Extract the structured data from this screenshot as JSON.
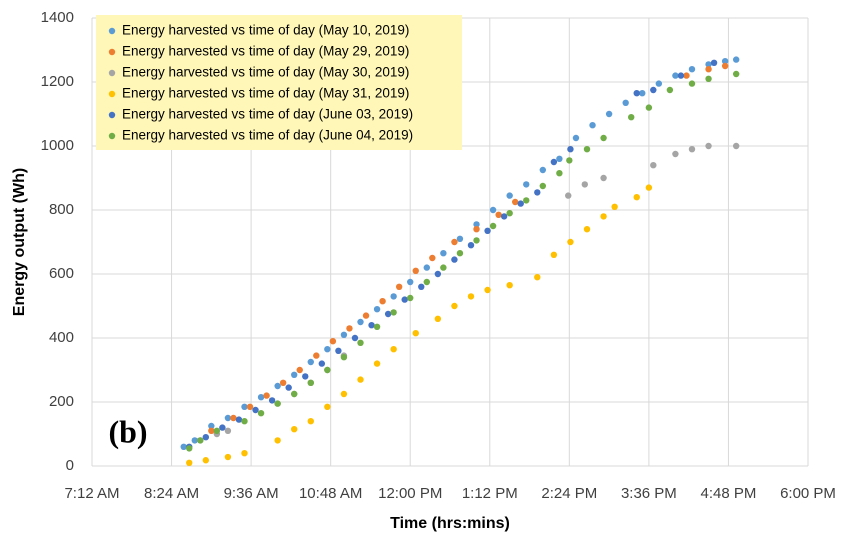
{
  "chart_data": {
    "type": "scatter",
    "x_label": "Time (hrs:mins)",
    "y_label": "Energy output (Wh)",
    "annotation": "(b)",
    "xlim": [
      432,
      1080
    ],
    "xticks": [
      {
        "value": 432,
        "label": "7:12 AM"
      },
      {
        "value": 504,
        "label": "8:24 AM"
      },
      {
        "value": 576,
        "label": "9:36 AM"
      },
      {
        "value": 648,
        "label": "10:48 AM"
      },
      {
        "value": 720,
        "label": "12:00 PM"
      },
      {
        "value": 792,
        "label": "1:12 PM"
      },
      {
        "value": 864,
        "label": "2:24 PM"
      },
      {
        "value": 936,
        "label": "3:36 PM"
      },
      {
        "value": 1008,
        "label": "4:48 PM"
      },
      {
        "value": 1080,
        "label": "6:00 PM"
      }
    ],
    "ylim": [
      0,
      1400
    ],
    "yticks": [
      0,
      200,
      400,
      600,
      800,
      1000,
      1200,
      1400
    ],
    "grid": true,
    "legend": "top-left",
    "series": [
      {
        "name": "Energy harvested vs time of day (May 10, 2019)",
        "color": "#5b9bd5",
        "x": [
          515,
          525,
          540,
          555,
          570,
          585,
          600,
          615,
          630,
          645,
          660,
          675,
          690,
          705,
          720,
          735,
          750,
          765,
          780,
          795,
          810,
          825,
          840,
          855,
          870,
          885,
          900,
          915,
          930,
          945,
          960,
          975,
          990,
          1005,
          1015
        ],
        "values": [
          60,
          80,
          125,
          150,
          185,
          215,
          250,
          285,
          325,
          365,
          410,
          450,
          490,
          530,
          575,
          620,
          665,
          710,
          755,
          800,
          845,
          880,
          925,
          960,
          1025,
          1065,
          1100,
          1135,
          1165,
          1195,
          1220,
          1240,
          1255,
          1265,
          1270
        ]
      },
      {
        "name": "Energy harvested vs time of day (May 29, 2019)",
        "color": "#ed7d31",
        "x": [
          540,
          560,
          575,
          590,
          605,
          620,
          635,
          650,
          665,
          680,
          695,
          710,
          725,
          740,
          760,
          780,
          800,
          815,
          970,
          990,
          1005
        ],
        "values": [
          110,
          150,
          185,
          220,
          260,
          300,
          345,
          390,
          430,
          470,
          515,
          560,
          610,
          650,
          700,
          740,
          785,
          825,
          1220,
          1240,
          1250
        ]
      },
      {
        "name": "Energy harvested vs time of day (May 30, 2019)",
        "color": "#a5a5a5",
        "x": [
          530,
          545,
          555,
          600,
          615,
          630,
          645,
          660,
          863,
          878,
          895,
          940,
          960,
          975,
          990,
          1015
        ],
        "values": [
          80,
          100,
          110,
          195,
          225,
          260,
          300,
          345,
          845,
          880,
          900,
          940,
          975,
          990,
          1000,
          1000
        ]
      },
      {
        "name": "Energy harvested vs time of day (May 31, 2019)",
        "color": "#ffc000",
        "x": [
          520,
          535,
          555,
          570,
          600,
          615,
          630,
          645,
          660,
          675,
          690,
          705,
          725,
          745,
          760,
          775,
          790,
          810,
          835,
          850,
          865,
          880,
          895,
          905,
          925,
          936
        ],
        "values": [
          10,
          18,
          28,
          40,
          80,
          115,
          140,
          185,
          225,
          270,
          320,
          365,
          415,
          460,
          500,
          530,
          550,
          565,
          590,
          660,
          700,
          740,
          780,
          810,
          840,
          870
        ]
      },
      {
        "name": "Energy harvested vs time of day (June 03, 2019)",
        "color": "#4472c4",
        "x": [
          520,
          535,
          550,
          565,
          580,
          595,
          610,
          625,
          640,
          655,
          670,
          685,
          700,
          715,
          730,
          745,
          760,
          775,
          790,
          805,
          820,
          835,
          850,
          865,
          925,
          940,
          965,
          995
        ],
        "values": [
          60,
          90,
          120,
          145,
          175,
          205,
          245,
          280,
          320,
          360,
          400,
          440,
          475,
          520,
          560,
          600,
          645,
          690,
          735,
          780,
          820,
          855,
          950,
          990,
          1165,
          1175,
          1220,
          1260
        ]
      },
      {
        "name": "Energy harvested vs time of day (June 04, 2019)",
        "color": "#70ad47",
        "x": [
          520,
          530,
          545,
          570,
          585,
          600,
          615,
          630,
          645,
          660,
          675,
          690,
          705,
          720,
          735,
          750,
          765,
          780,
          795,
          810,
          825,
          840,
          855,
          864,
          880,
          895,
          920,
          936,
          955,
          975,
          990,
          1015
        ],
        "values": [
          55,
          80,
          110,
          140,
          165,
          195,
          225,
          260,
          300,
          340,
          385,
          435,
          480,
          525,
          575,
          620,
          665,
          705,
          750,
          790,
          830,
          875,
          915,
          955,
          990,
          1025,
          1090,
          1120,
          1175,
          1195,
          1210,
          1225
        ]
      }
    ]
  }
}
